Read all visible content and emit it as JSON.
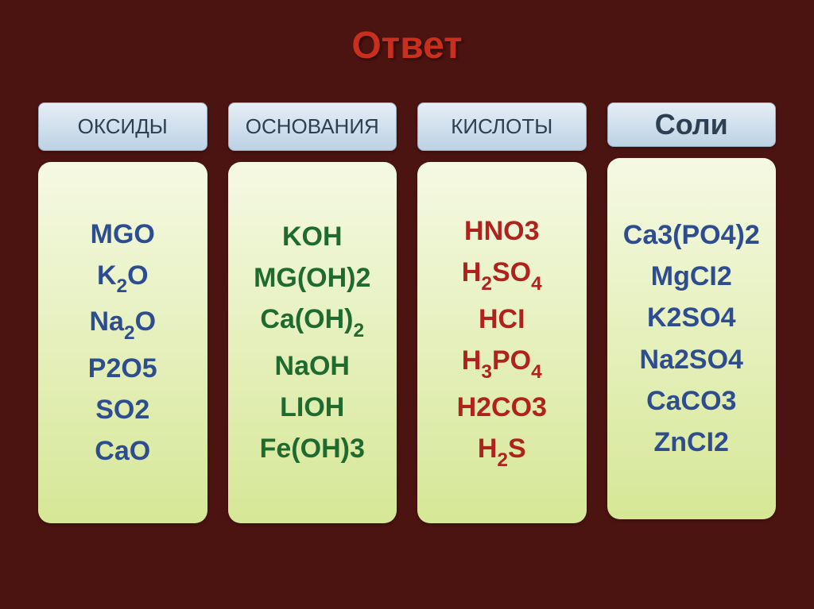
{
  "title": "Ответ",
  "title_color": "#c92f1e",
  "background_color": "#4c1410",
  "header_bg_gradient_top": "#e6eef6",
  "header_bg_gradient_bottom": "#bcd2e4",
  "header_text_color": "#2d3f52",
  "content_bg_gradient_top": "#f5f9e3",
  "content_bg_gradient_bottom": "#d6e796",
  "columns": [
    {
      "header": "ОКСИДЫ",
      "header_style": "normal",
      "items_color": "#2e4d8f",
      "items": [
        {
          "html": "MGO"
        },
        {
          "html": "K<sub>2</sub>O"
        },
        {
          "html": "Na<sub>2</sub>O"
        },
        {
          "html": "P2O5"
        },
        {
          "html": "SO2"
        },
        {
          "html": "CaO"
        }
      ]
    },
    {
      "header": "ОСНОВАНИЯ",
      "header_style": "normal",
      "items_color": "#1f6b2f",
      "items": [
        {
          "html": "KOH"
        },
        {
          "html": "MG(OH)2"
        },
        {
          "html": "Ca(OH)<sub>2</sub>"
        },
        {
          "html": "NaOH"
        },
        {
          "html": "LIOH"
        },
        {
          "html": "Fe(OH)3"
        }
      ]
    },
    {
      "header": "КИСЛОТЫ",
      "header_style": "normal",
      "items_color": "#b0221e",
      "items": [
        {
          "html": "HNO3"
        },
        {
          "html": "H<sub>2</sub>SO<sub>4</sub>"
        },
        {
          "html": "HCI"
        },
        {
          "html": "H<sub>3</sub>PO<sub>4</sub>"
        },
        {
          "html": "H2CO3"
        },
        {
          "html": "H<sub>2</sub>S"
        }
      ]
    },
    {
      "header": "Соли",
      "header_style": "salts",
      "items_color": "#2e4d8f",
      "items": [
        {
          "html": "Ca3(PO4)2"
        },
        {
          "html": "MgCI2"
        },
        {
          "html": "K2SO4"
        },
        {
          "html": "Na2SO4"
        },
        {
          "html": "CaCO3"
        },
        {
          "html": "ZnCI2"
        }
      ]
    }
  ]
}
